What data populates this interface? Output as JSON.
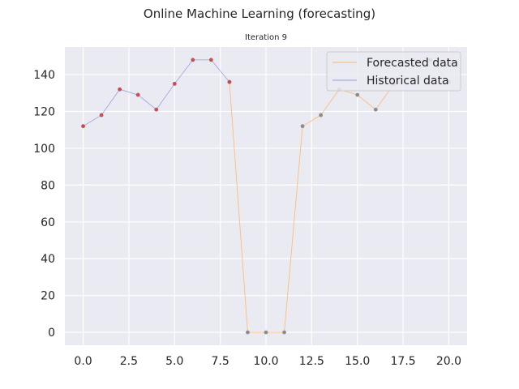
{
  "chart_data": {
    "type": "line",
    "title": "Online Machine Learning (forecasting)",
    "subtitle": "Iteration 9",
    "xlabel": "",
    "ylabel": "",
    "xlim": [
      -1,
      21
    ],
    "ylim": [
      -7,
      155
    ],
    "xticks": [
      0,
      2.5,
      5,
      7.5,
      10,
      12.5,
      15,
      17.5,
      20
    ],
    "xtick_labels": [
      "0.0",
      "2.5",
      "5.0",
      "7.5",
      "10.0",
      "12.5",
      "15.0",
      "17.5",
      "20.0"
    ],
    "yticks": [
      0,
      20,
      40,
      60,
      80,
      100,
      120,
      140
    ],
    "ytick_labels": [
      "0",
      "20",
      "40",
      "60",
      "80",
      "100",
      "120",
      "140"
    ],
    "grid": true,
    "legend_position": "top-right",
    "series": [
      {
        "name": "Forecasted data",
        "color": "#ffb86b",
        "marker_color": "#8c8c8c",
        "x": [
          8,
          9,
          10,
          11,
          12,
          13,
          14,
          15,
          16,
          17,
          18,
          19,
          20
        ],
        "y": [
          136,
          0,
          0,
          0,
          112,
          118,
          132,
          129,
          121,
          135,
          148,
          148,
          136
        ]
      },
      {
        "name": "Historical data",
        "color": "#9b9fdc",
        "marker_color": "#c44e52",
        "x": [
          0,
          1,
          2,
          3,
          4,
          5,
          6,
          7,
          8
        ],
        "y": [
          112,
          118,
          132,
          129,
          121,
          135,
          148,
          148,
          136
        ]
      }
    ]
  },
  "colors": {
    "plot_background": "#eaeaf2",
    "grid": "#ffffff",
    "text": "#262626"
  }
}
